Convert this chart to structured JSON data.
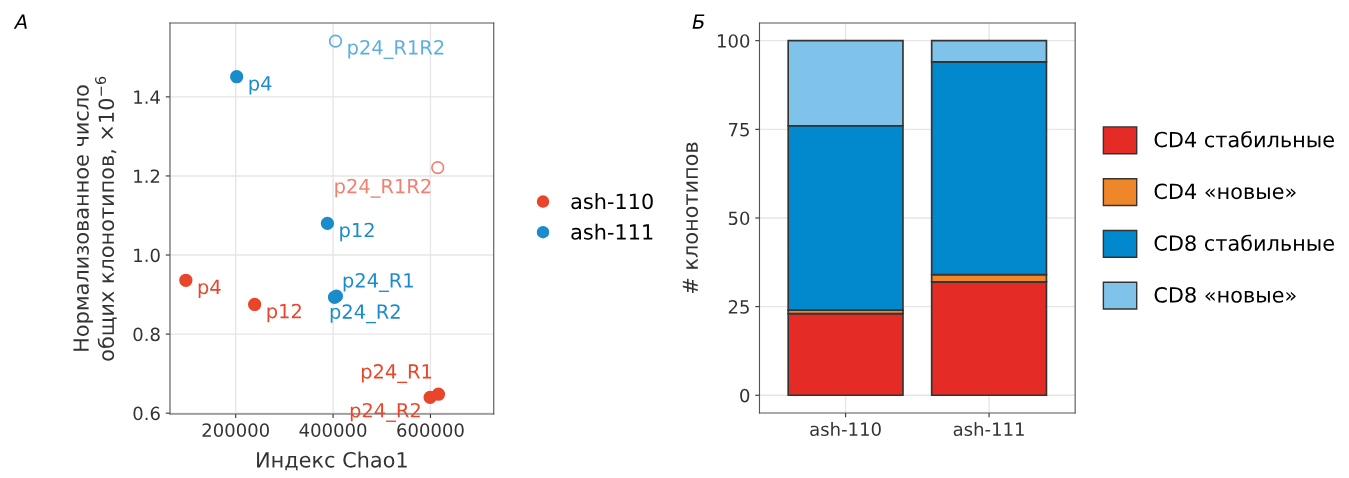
{
  "chart_data": [
    {
      "type": "scatter",
      "title": "А",
      "xlabel": "Индекс Chao1",
      "ylabel": "Нормализованное число\nобщих клонотипов, ×10$^{−6}$",
      "xlim": [
        65000,
        730000
      ],
      "xticks": [
        200000,
        400000,
        600000
      ],
      "ylim": [
        0.598,
        1.587
      ],
      "yticks": [
        0.6,
        0.8,
        {
          "value": 1.0,
          "label": "1.0"
        },
        1.2,
        1.4
      ],
      "grid": true,
      "legend": "right",
      "marker": "circle",
      "series": [
        {
          "name": "ash-110",
          "color": "#e8452a",
          "x": [
            97600,
            238900,
            616400,
            599300
          ],
          "values": [
            0.936,
            0.875,
            0.648,
            0.64
          ],
          "value_labels": [
            "p4",
            "p12",
            "p24_R1",
            "p24_R2"
          ]
        },
        {
          "name": "ash-111",
          "color": "#1a8ccc",
          "x": [
            202000,
            388400,
            406800,
            403000
          ],
          "values": [
            1.451,
            1.08,
            0.896,
            0.893
          ],
          "value_labels": [
            "p4",
            "p12",
            "p24_R1",
            "p24_R2"
          ]
        },
        {
          "color": "#f08070",
          "x": [
            615000
          ],
          "values": [
            1.221
          ],
          "value_labels": [
            "p24_R1R2"
          ]
        },
        {
          "color": "#5aaee0",
          "x": [
            405000
          ],
          "values": [
            1.541
          ],
          "value_labels": [
            "p24_R1R2"
          ]
        }
      ]
    },
    {
      "type": "bar",
      "title": "Б",
      "ylabel": "# клонотипов",
      "stacked": true,
      "categories": [
        "ash-110",
        "ash-111"
      ],
      "ylim": [
        -5,
        105
      ],
      "yticks": [
        0,
        25,
        50,
        75,
        100
      ],
      "grid": true,
      "legend": "right",
      "series": [
        {
          "name": "CD4 стабильные",
          "color": "#e52b25",
          "values": [
            23,
            32
          ]
        },
        {
          "name": "CD4 «новые»",
          "color": "#f0862a",
          "values": [
            1,
            2
          ]
        },
        {
          "name": "CD8 стабильные",
          "color": "#0288cc",
          "values": [
            52,
            60
          ]
        },
        {
          "name": "CD8 «новые»",
          "color": "#7fc3ea",
          "values": [
            24,
            6
          ]
        }
      ]
    }
  ]
}
